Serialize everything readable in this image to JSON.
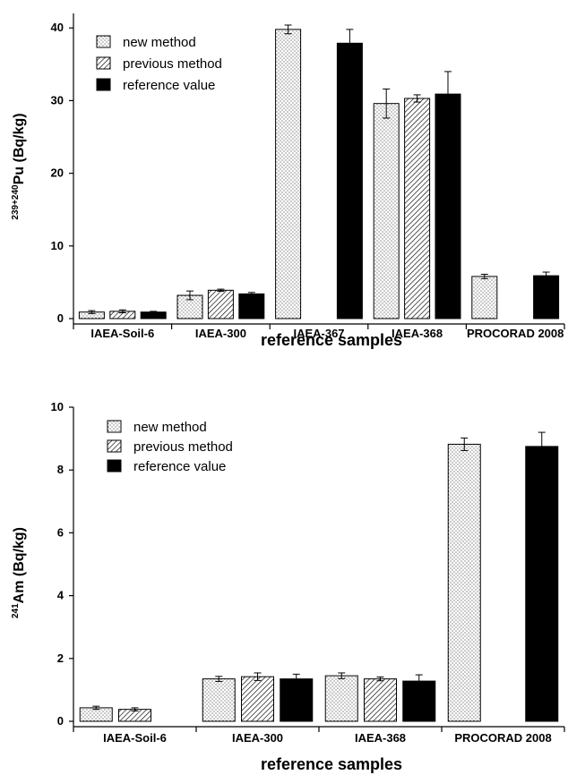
{
  "chart_data": [
    {
      "type": "bar",
      "ylabel_superscript": "239+240",
      "ylabel_text": "Pu (Bq/kg)",
      "xlabel": "reference samples",
      "ylim": [
        0,
        42
      ],
      "yticks": [
        0,
        10,
        20,
        30,
        40
      ],
      "legend_position": "top-left",
      "categories": [
        "IAEA-Soil-6",
        "IAEA-300",
        "IAEA-367",
        "IAEA-368",
        "PROCORAD 2008"
      ],
      "series": [
        {
          "name": "new method",
          "pattern": "dots",
          "values": [
            0.9,
            3.2,
            39.8,
            29.6,
            5.8
          ],
          "errors": [
            0.2,
            0.6,
            0.6,
            2.0,
            0.3
          ]
        },
        {
          "name": "previous method",
          "pattern": "hatch",
          "values": [
            1.0,
            3.9,
            null,
            30.3,
            null
          ],
          "errors": [
            0.2,
            0.15,
            null,
            0.5,
            null
          ]
        },
        {
          "name": "reference value",
          "pattern": "solid",
          "values": [
            0.9,
            3.4,
            37.9,
            30.9,
            5.9
          ],
          "errors": [
            0.1,
            0.2,
            1.9,
            3.1,
            0.5
          ]
        }
      ]
    },
    {
      "type": "bar",
      "ylabel_superscript": "241",
      "ylabel_text": "Am (Bq/kg)",
      "xlabel": "reference samples",
      "ylim": [
        0,
        10
      ],
      "yticks": [
        0,
        2,
        4,
        6,
        8,
        10
      ],
      "legend_position": "top-left",
      "categories": [
        "IAEA-Soil-6",
        "IAEA-300",
        "IAEA-368",
        "PROCORAD 2008"
      ],
      "series": [
        {
          "name": "new method",
          "pattern": "dots",
          "values": [
            0.43,
            1.35,
            1.45,
            8.82
          ],
          "errors": [
            0.05,
            0.08,
            0.09,
            0.2
          ]
        },
        {
          "name": "previous method",
          "pattern": "hatch",
          "values": [
            0.38,
            1.42,
            1.35,
            null
          ],
          "errors": [
            0.05,
            0.12,
            0.06,
            null
          ]
        },
        {
          "name": "reference value",
          "pattern": "solid",
          "values": [
            null,
            1.35,
            1.28,
            8.75
          ],
          "errors": [
            null,
            0.15,
            0.2,
            0.45
          ]
        }
      ]
    }
  ]
}
